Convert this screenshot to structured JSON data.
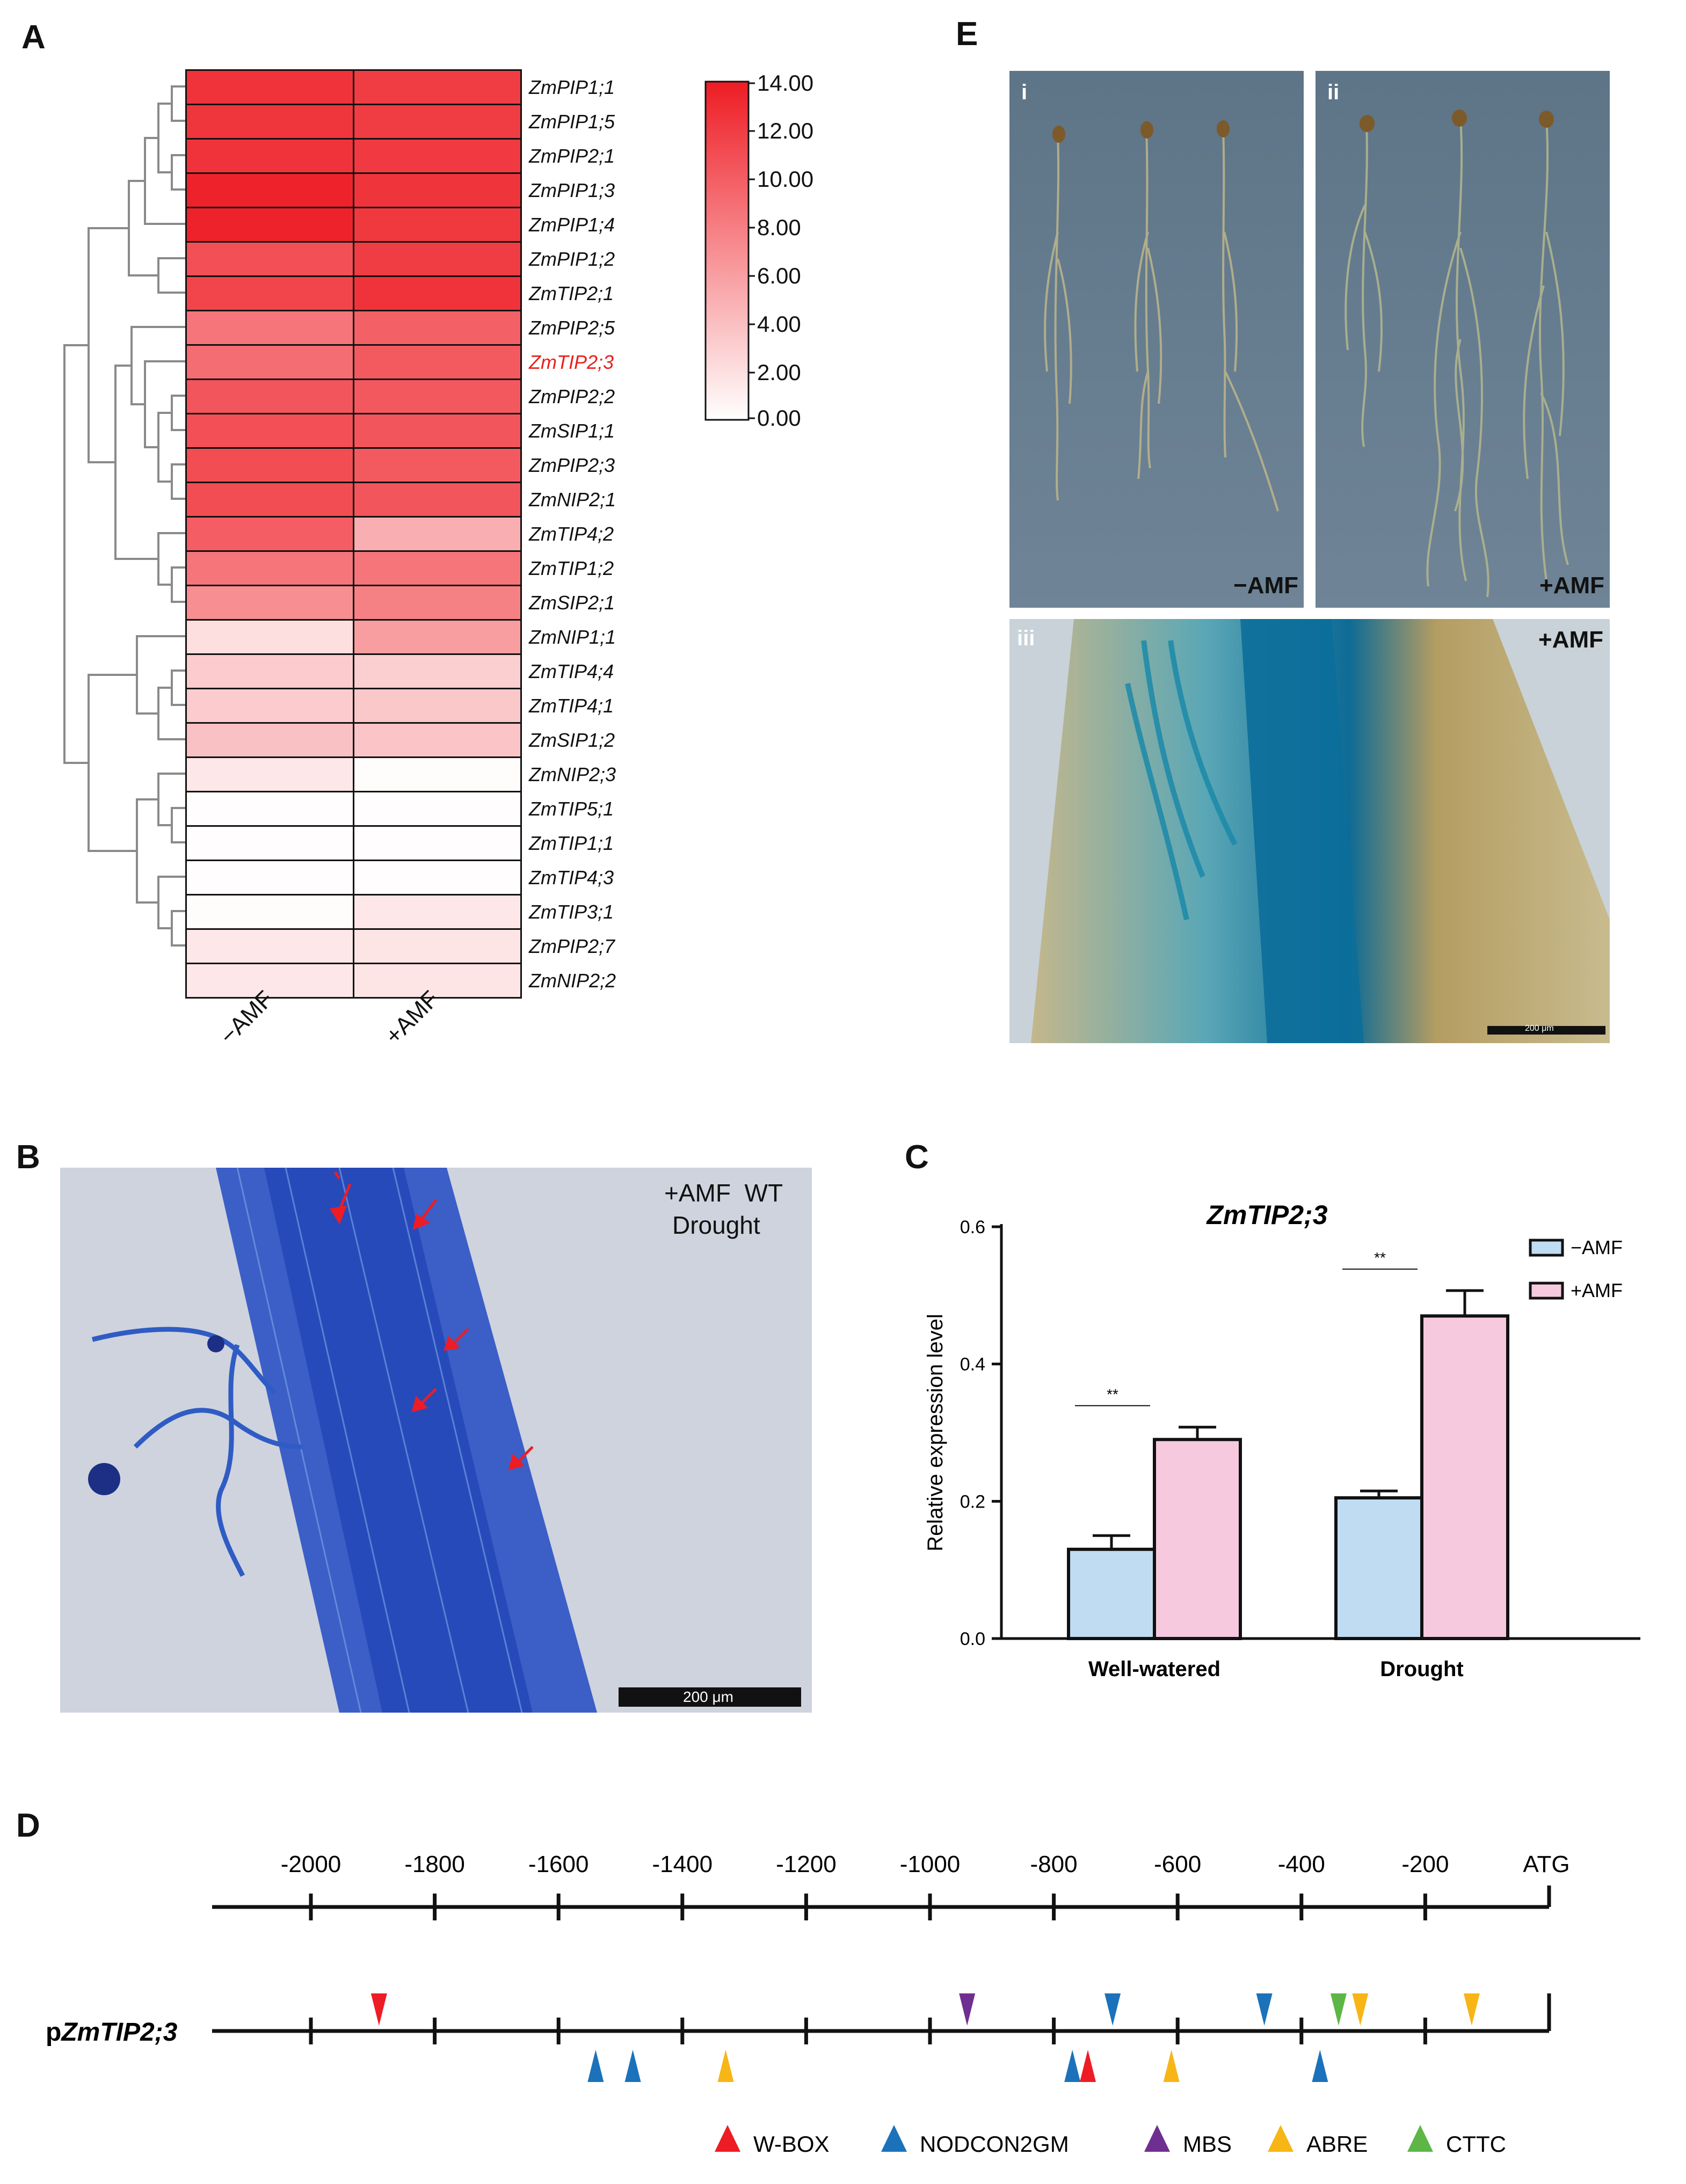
{
  "panels": {
    "A": "A",
    "B": "B",
    "C": "C",
    "D": "D",
    "E": "E"
  },
  "panel_a": {
    "colorbar_ticks": [
      "14.00",
      "12.00",
      "10.00",
      "8.00",
      "6.00",
      "4.00",
      "2.00",
      "0.00"
    ],
    "columns": [
      "−AMF",
      "+AMF"
    ],
    "highlight_color": "#e8221b",
    "highlight_gene": "ZmTIP2;3",
    "colormap": {
      "low": "#ffffff",
      "high": "#ee1c24",
      "min": 0,
      "max": 14
    },
    "rows": [
      {
        "gene": "ZmPIP1;1",
        "values": [
          12.6,
          12.0
        ]
      },
      {
        "gene": "ZmPIP1;5",
        "values": [
          12.4,
          12.0
        ]
      },
      {
        "gene": "ZmPIP2;1",
        "values": [
          12.6,
          12.2
        ]
      },
      {
        "gene": "ZmPIP1;3",
        "values": [
          13.6,
          12.5
        ]
      },
      {
        "gene": "ZmPIP1;4",
        "values": [
          13.6,
          12.3
        ]
      },
      {
        "gene": "ZmPIP1;2",
        "values": [
          10.8,
          12.0
        ]
      },
      {
        "gene": "ZmTIP2;1",
        "values": [
          11.5,
          12.6
        ]
      },
      {
        "gene": "ZmPIP2;5",
        "values": [
          8.5,
          9.8
        ]
      },
      {
        "gene": "ZmTIP2;3",
        "values": [
          9.0,
          10.2
        ]
      },
      {
        "gene": "ZmPIP2;2",
        "values": [
          10.5,
          10.3
        ]
      },
      {
        "gene": "ZmSIP1;1",
        "values": [
          10.8,
          10.5
        ]
      },
      {
        "gene": "ZmPIP2;3",
        "values": [
          11.0,
          10.2
        ]
      },
      {
        "gene": "ZmNIP2;1",
        "values": [
          11.0,
          10.5
        ]
      },
      {
        "gene": "ZmTIP4;2",
        "values": [
          10.0,
          5.0
        ]
      },
      {
        "gene": "ZmTIP1;2",
        "values": [
          8.5,
          8.5
        ]
      },
      {
        "gene": "ZmSIP2;1",
        "values": [
          7.0,
          7.8
        ]
      },
      {
        "gene": "ZmNIP1;1",
        "values": [
          2.0,
          6.0
        ]
      },
      {
        "gene": "ZmTIP4;4",
        "values": [
          3.2,
          3.0
        ]
      },
      {
        "gene": "ZmTIP4;1",
        "values": [
          3.2,
          3.4
        ]
      },
      {
        "gene": "ZmSIP1;2",
        "values": [
          3.8,
          3.6
        ]
      },
      {
        "gene": "ZmNIP2;3",
        "values": [
          1.5,
          0.2
        ]
      },
      {
        "gene": "ZmTIP5;1",
        "values": [
          0.1,
          0.1
        ]
      },
      {
        "gene": "ZmTIP1;1",
        "values": [
          0.1,
          0.1
        ]
      },
      {
        "gene": "ZmTIP4;3",
        "values": [
          0.1,
          0.1
        ]
      },
      {
        "gene": "ZmTIP3;1",
        "values": [
          0.2,
          1.5
        ]
      },
      {
        "gene": "ZmPIP2;7",
        "values": [
          1.5,
          1.6
        ]
      },
      {
        "gene": "ZmNIP2;2",
        "values": [
          1.5,
          1.6
        ]
      }
    ]
  },
  "panel_b": {
    "label_line1": "+AMF  WT",
    "label_line2": "Drought",
    "scalebar": "200 μm"
  },
  "panel_e": {
    "sub_i": "i",
    "sub_ii": "ii",
    "sub_iii": "iii",
    "label_i": "−AMF",
    "label_ii": "+AMF",
    "label_iii": "+AMF",
    "scalebar": "200 μm"
  },
  "chart_data": {
    "type": "bar",
    "title": "ZmTIP2;3",
    "xlabel": "",
    "ylabel": "Relative expression level",
    "ylim": [
      0,
      0.6
    ],
    "yticks": [
      "0.0",
      "0.2",
      "0.4",
      "0.6"
    ],
    "categories": [
      "Well-watered",
      "Drought"
    ],
    "series": [
      {
        "name": "−AMF",
        "values": [
          0.13,
          0.205
        ],
        "errors": [
          0.02,
          0.01
        ],
        "color": "#bfdcf2"
      },
      {
        "name": "+AMF",
        "values": [
          0.29,
          0.47
        ],
        "errors": [
          0.018,
          0.037
        ],
        "color": "#f7c9de"
      }
    ],
    "significance": [
      "**",
      "**"
    ],
    "legend_position": "top-right"
  },
  "panel_d": {
    "promoter_label_prefix": "p",
    "promoter_label_gene": "ZmTIP2;3",
    "axis_end_label": "ATG",
    "positions": [
      -2000,
      -1800,
      -1600,
      -1400,
      -1200,
      -1000,
      -800,
      -600,
      -400,
      -200
    ],
    "tick_labels": [
      "-2000",
      "-1800",
      "-1600",
      "-1400",
      "-1200",
      "-1000",
      "-800",
      "-600",
      "-400",
      "-200"
    ],
    "elements": [
      {
        "type": "W-BOX",
        "position": -1890,
        "strand": "above"
      },
      {
        "type": "NODCON2GM",
        "position": -1540,
        "strand": "below"
      },
      {
        "type": "NODCON2GM",
        "position": -1480,
        "strand": "below"
      },
      {
        "type": "ABRE",
        "position": -1330,
        "strand": "below"
      },
      {
        "type": "MBS",
        "position": -940,
        "strand": "above"
      },
      {
        "type": "NODCON2GM",
        "position": -770,
        "strand": "below"
      },
      {
        "type": "W-BOX",
        "position": -745,
        "strand": "below"
      },
      {
        "type": "NODCON2GM",
        "position": -705,
        "strand": "above"
      },
      {
        "type": "ABRE",
        "position": -610,
        "strand": "below"
      },
      {
        "type": "NODCON2GM",
        "position": -460,
        "strand": "above"
      },
      {
        "type": "NODCON2GM",
        "position": -370,
        "strand": "below"
      },
      {
        "type": "CTTC",
        "position": -340,
        "strand": "above"
      },
      {
        "type": "ABRE",
        "position": -305,
        "strand": "above"
      },
      {
        "type": "ABRE",
        "position": -125,
        "strand": "above"
      }
    ],
    "legend": [
      {
        "name": "W-BOX",
        "color": "#ee1c24"
      },
      {
        "name": "NODCON2GM",
        "color": "#1b72ba"
      },
      {
        "name": "MBS",
        "color": "#6f2f91"
      },
      {
        "name": "ABRE",
        "color": "#f7b516"
      },
      {
        "name": "CTTC",
        "color": "#5db646"
      }
    ]
  }
}
